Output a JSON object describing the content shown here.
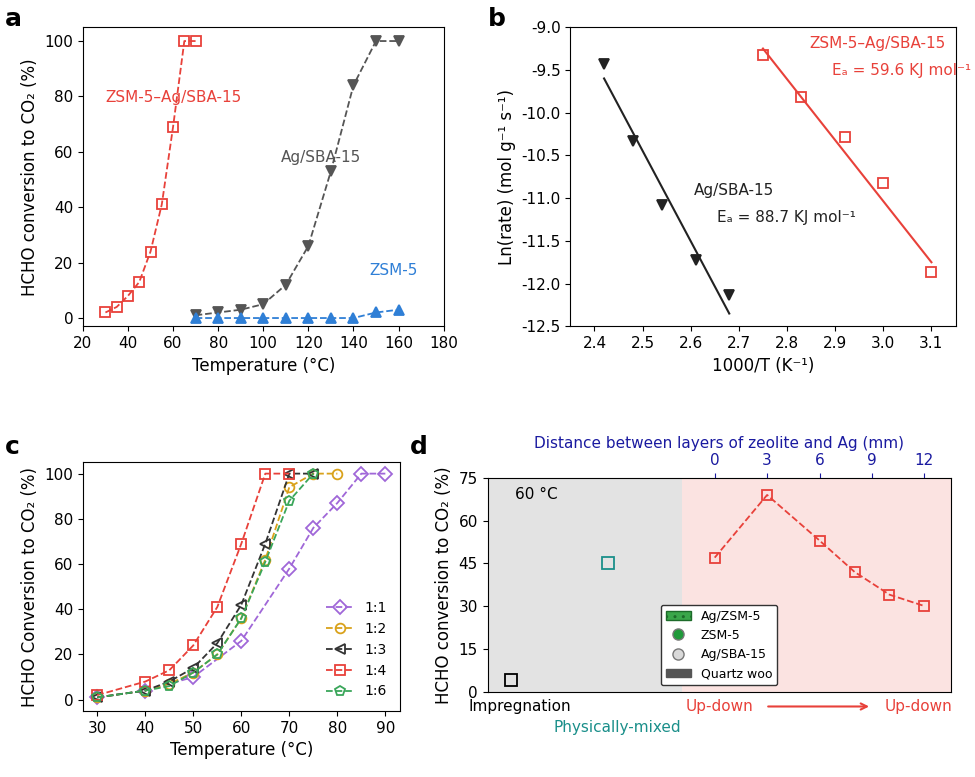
{
  "chart_data": [
    {
      "panel": "a",
      "type": "line",
      "xlabel": "Temperature (°C)",
      "ylabel": "HCHO conversion to CO₂ (%)",
      "xlim": [
        20,
        180
      ],
      "xticks": [
        20,
        40,
        60,
        80,
        100,
        120,
        140,
        160,
        180
      ],
      "ylim": [
        -3,
        105
      ],
      "yticks": [
        0,
        20,
        40,
        60,
        80,
        100
      ],
      "series": [
        {
          "name": "ZSM-5–Ag/SBA-15",
          "color": "#e8413a",
          "marker": "open-square",
          "line_style": "dashed",
          "x": [
            30,
            35,
            40,
            45,
            50,
            55,
            60,
            65,
            70
          ],
          "values": [
            2,
            4,
            8,
            13,
            24,
            41,
            69,
            100,
            100
          ]
        },
        {
          "name": "Ag/SBA-15",
          "color": "#555555",
          "marker": "triangle-down",
          "line_style": "dashed",
          "x": [
            70,
            80,
            90,
            100,
            110,
            120,
            130,
            140,
            150,
            160
          ],
          "values": [
            1,
            2,
            3,
            5,
            12,
            26,
            53,
            84,
            100,
            100
          ]
        },
        {
          "name": "ZSM-5",
          "color": "#2f7fd6",
          "marker": "triangle-up",
          "line_style": "dashed",
          "x": [
            70,
            80,
            90,
            100,
            110,
            120,
            130,
            140,
            150,
            160
          ],
          "values": [
            0,
            0,
            0,
            0,
            0,
            0,
            0,
            0,
            2,
            3
          ]
        }
      ]
    },
    {
      "panel": "b",
      "type": "scatter",
      "xlabel": "1000/T (K⁻¹)",
      "ylabel": "Ln(rate) (mol g⁻¹ s⁻¹)",
      "xlim": [
        2.35,
        3.15
      ],
      "xticks": [
        2.4,
        2.5,
        2.6,
        2.7,
        2.8,
        2.9,
        3.0,
        3.1
      ],
      "ylim": [
        -12.5,
        -9.0
      ],
      "yticks": [
        -12.5,
        -12.0,
        -11.5,
        -11.0,
        -10.5,
        -10.0,
        -9.5,
        -9.0
      ],
      "series": [
        {
          "name": "ZSM-5–Ag/SBA-15",
          "color": "#e8413a",
          "marker": "open-square",
          "annotation": "Eₐ = 59.6 KJ mol⁻¹",
          "x": [
            2.75,
            2.83,
            2.92,
            3.0,
            3.1
          ],
          "values": [
            -9.33,
            -9.82,
            -10.28,
            -10.82,
            -11.87
          ],
          "fit_x": [
            2.75,
            3.1
          ],
          "fit_values": [
            -9.25,
            -11.75
          ]
        },
        {
          "name": "Ag/SBA-15",
          "color": "#222222",
          "marker": "triangle-down",
          "annotation": "Eₐ = 88.7 KJ mol⁻¹",
          "x": [
            2.42,
            2.48,
            2.54,
            2.61,
            2.68
          ],
          "values": [
            -9.43,
            -10.33,
            -11.08,
            -11.72,
            -12.13
          ],
          "fit_x": [
            2.42,
            2.68
          ],
          "fit_values": [
            -9.6,
            -12.35
          ]
        }
      ]
    },
    {
      "panel": "c",
      "type": "line",
      "xlabel": "Temperature (°C)",
      "ylabel": "HCHO Conversion to CO₂ (%)",
      "xlim": [
        27,
        93
      ],
      "xticks": [
        30,
        40,
        50,
        60,
        70,
        80,
        90
      ],
      "ylim": [
        -5,
        105
      ],
      "yticks": [
        0,
        20,
        40,
        60,
        80,
        100
      ],
      "legend": "lower right",
      "series": [
        {
          "name": "1:1",
          "color": "#a067d8",
          "marker": "open-diamond",
          "line_style": "dashed",
          "x": [
            30,
            40,
            50,
            60,
            70,
            75,
            80,
            85,
            90
          ],
          "values": [
            1,
            4,
            10,
            26,
            58,
            76,
            87,
            100,
            100
          ]
        },
        {
          "name": "1:2",
          "color": "#d9a21b",
          "marker": "open-circle",
          "line_style": "dashed",
          "x": [
            30,
            40,
            45,
            50,
            55,
            60,
            65,
            70,
            75,
            80
          ],
          "values": [
            1,
            4,
            7,
            12,
            20,
            36,
            62,
            94,
            100,
            100
          ]
        },
        {
          "name": "1:3",
          "color": "#333333",
          "marker": "open-triangle-left",
          "line_style": "dashed",
          "x": [
            30,
            40,
            45,
            50,
            55,
            60,
            65,
            70,
            75
          ],
          "values": [
            1,
            4,
            8,
            14,
            25,
            42,
            69,
            100,
            100
          ]
        },
        {
          "name": "1:4",
          "color": "#e8413a",
          "marker": "open-square",
          "line_style": "dashed",
          "x": [
            30,
            40,
            45,
            50,
            55,
            60,
            65,
            70
          ],
          "values": [
            2,
            8,
            13,
            24,
            41,
            69,
            100,
            100
          ]
        },
        {
          "name": "1:6",
          "color": "#3aa65a",
          "marker": "open-pentagon",
          "line_style": "dashed",
          "x": [
            30,
            40,
            45,
            50,
            55,
            60,
            65,
            70,
            75
          ],
          "values": [
            1,
            4,
            6,
            12,
            20,
            36,
            61,
            88,
            100
          ]
        }
      ]
    },
    {
      "panel": "d",
      "type": "line",
      "xlabel": "Distance between layers of zeolite and Ag (mm)",
      "ylabel": "HCHO conversion to CO₂ (%)",
      "annotation": "60 °C",
      "xlim": [
        -13,
        13.5
      ],
      "xticks": [
        0,
        3,
        6,
        9,
        12
      ],
      "ylim": [
        0,
        75
      ],
      "yticks": [
        0,
        15,
        30,
        45,
        60,
        75
      ],
      "categories": [
        "Impregnation",
        "Physically-mixed"
      ],
      "category_values": [
        4,
        45
      ],
      "category_colors": [
        "#000000",
        "#1a8f8a"
      ],
      "series": [
        {
          "name": "Up-down",
          "color": "#e8413a",
          "marker": "open-square",
          "line_style": "dashed",
          "x": [
            0,
            3,
            6,
            8,
            10,
            12
          ],
          "values": [
            47,
            69,
            53,
            42,
            34,
            30
          ]
        }
      ],
      "range_labels": [
        "Up-down",
        "Up-down"
      ],
      "legend": "lower center",
      "legend_entries": [
        {
          "name": "Ag/ZSM-5",
          "color": "#3aa64a",
          "marker": "hatched-box"
        },
        {
          "name": "ZSM-5",
          "color": "#1f9a3a",
          "marker": "circle"
        },
        {
          "name": "Ag/SBA-15",
          "color": "#d9d9d9",
          "marker": "circle"
        },
        {
          "name": "Quartz woo",
          "color": "#555555",
          "marker": "box"
        }
      ]
    }
  ]
}
